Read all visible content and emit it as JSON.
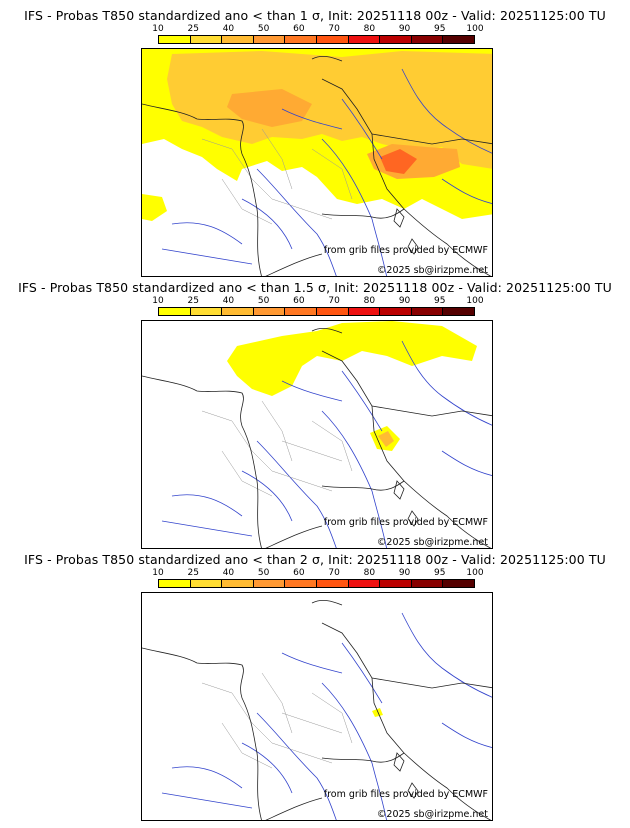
{
  "colorbar": {
    "labels": [
      "10",
      "25",
      "40",
      "50",
      "60",
      "70",
      "80",
      "90",
      "95",
      "100"
    ],
    "colors": [
      "#ffff00",
      "#ffdd33",
      "#ffbb33",
      "#ff9933",
      "#ff7722",
      "#ff5511",
      "#ee1111",
      "#bb0000",
      "#880000",
      "#550000"
    ]
  },
  "panels": [
    {
      "title": "IFS - Probas T850  standardized ano < than 1 σ, Init: 20251118 00z - Valid: 20251125:00 TU",
      "credit_source": "from grib files provided by ECMWF",
      "credit_copy": "©2025 sb@irizpme.net"
    },
    {
      "title": "IFS - Probas T850  standardized ano < than 1.5 σ, Init: 20251118 00z - Valid: 20251125:00 TU",
      "credit_source": "from grib files provided by ECMWF",
      "credit_copy": "©2025 sb@irizpme.net"
    },
    {
      "title": "IFS - Probas T850  standardized ano < than 2 σ, Init: 20251118 00z - Valid: 20251125:00 TU",
      "credit_source": "from grib files provided by ECMWF",
      "credit_copy": "©2025 sb@irizpme.net"
    }
  ]
}
